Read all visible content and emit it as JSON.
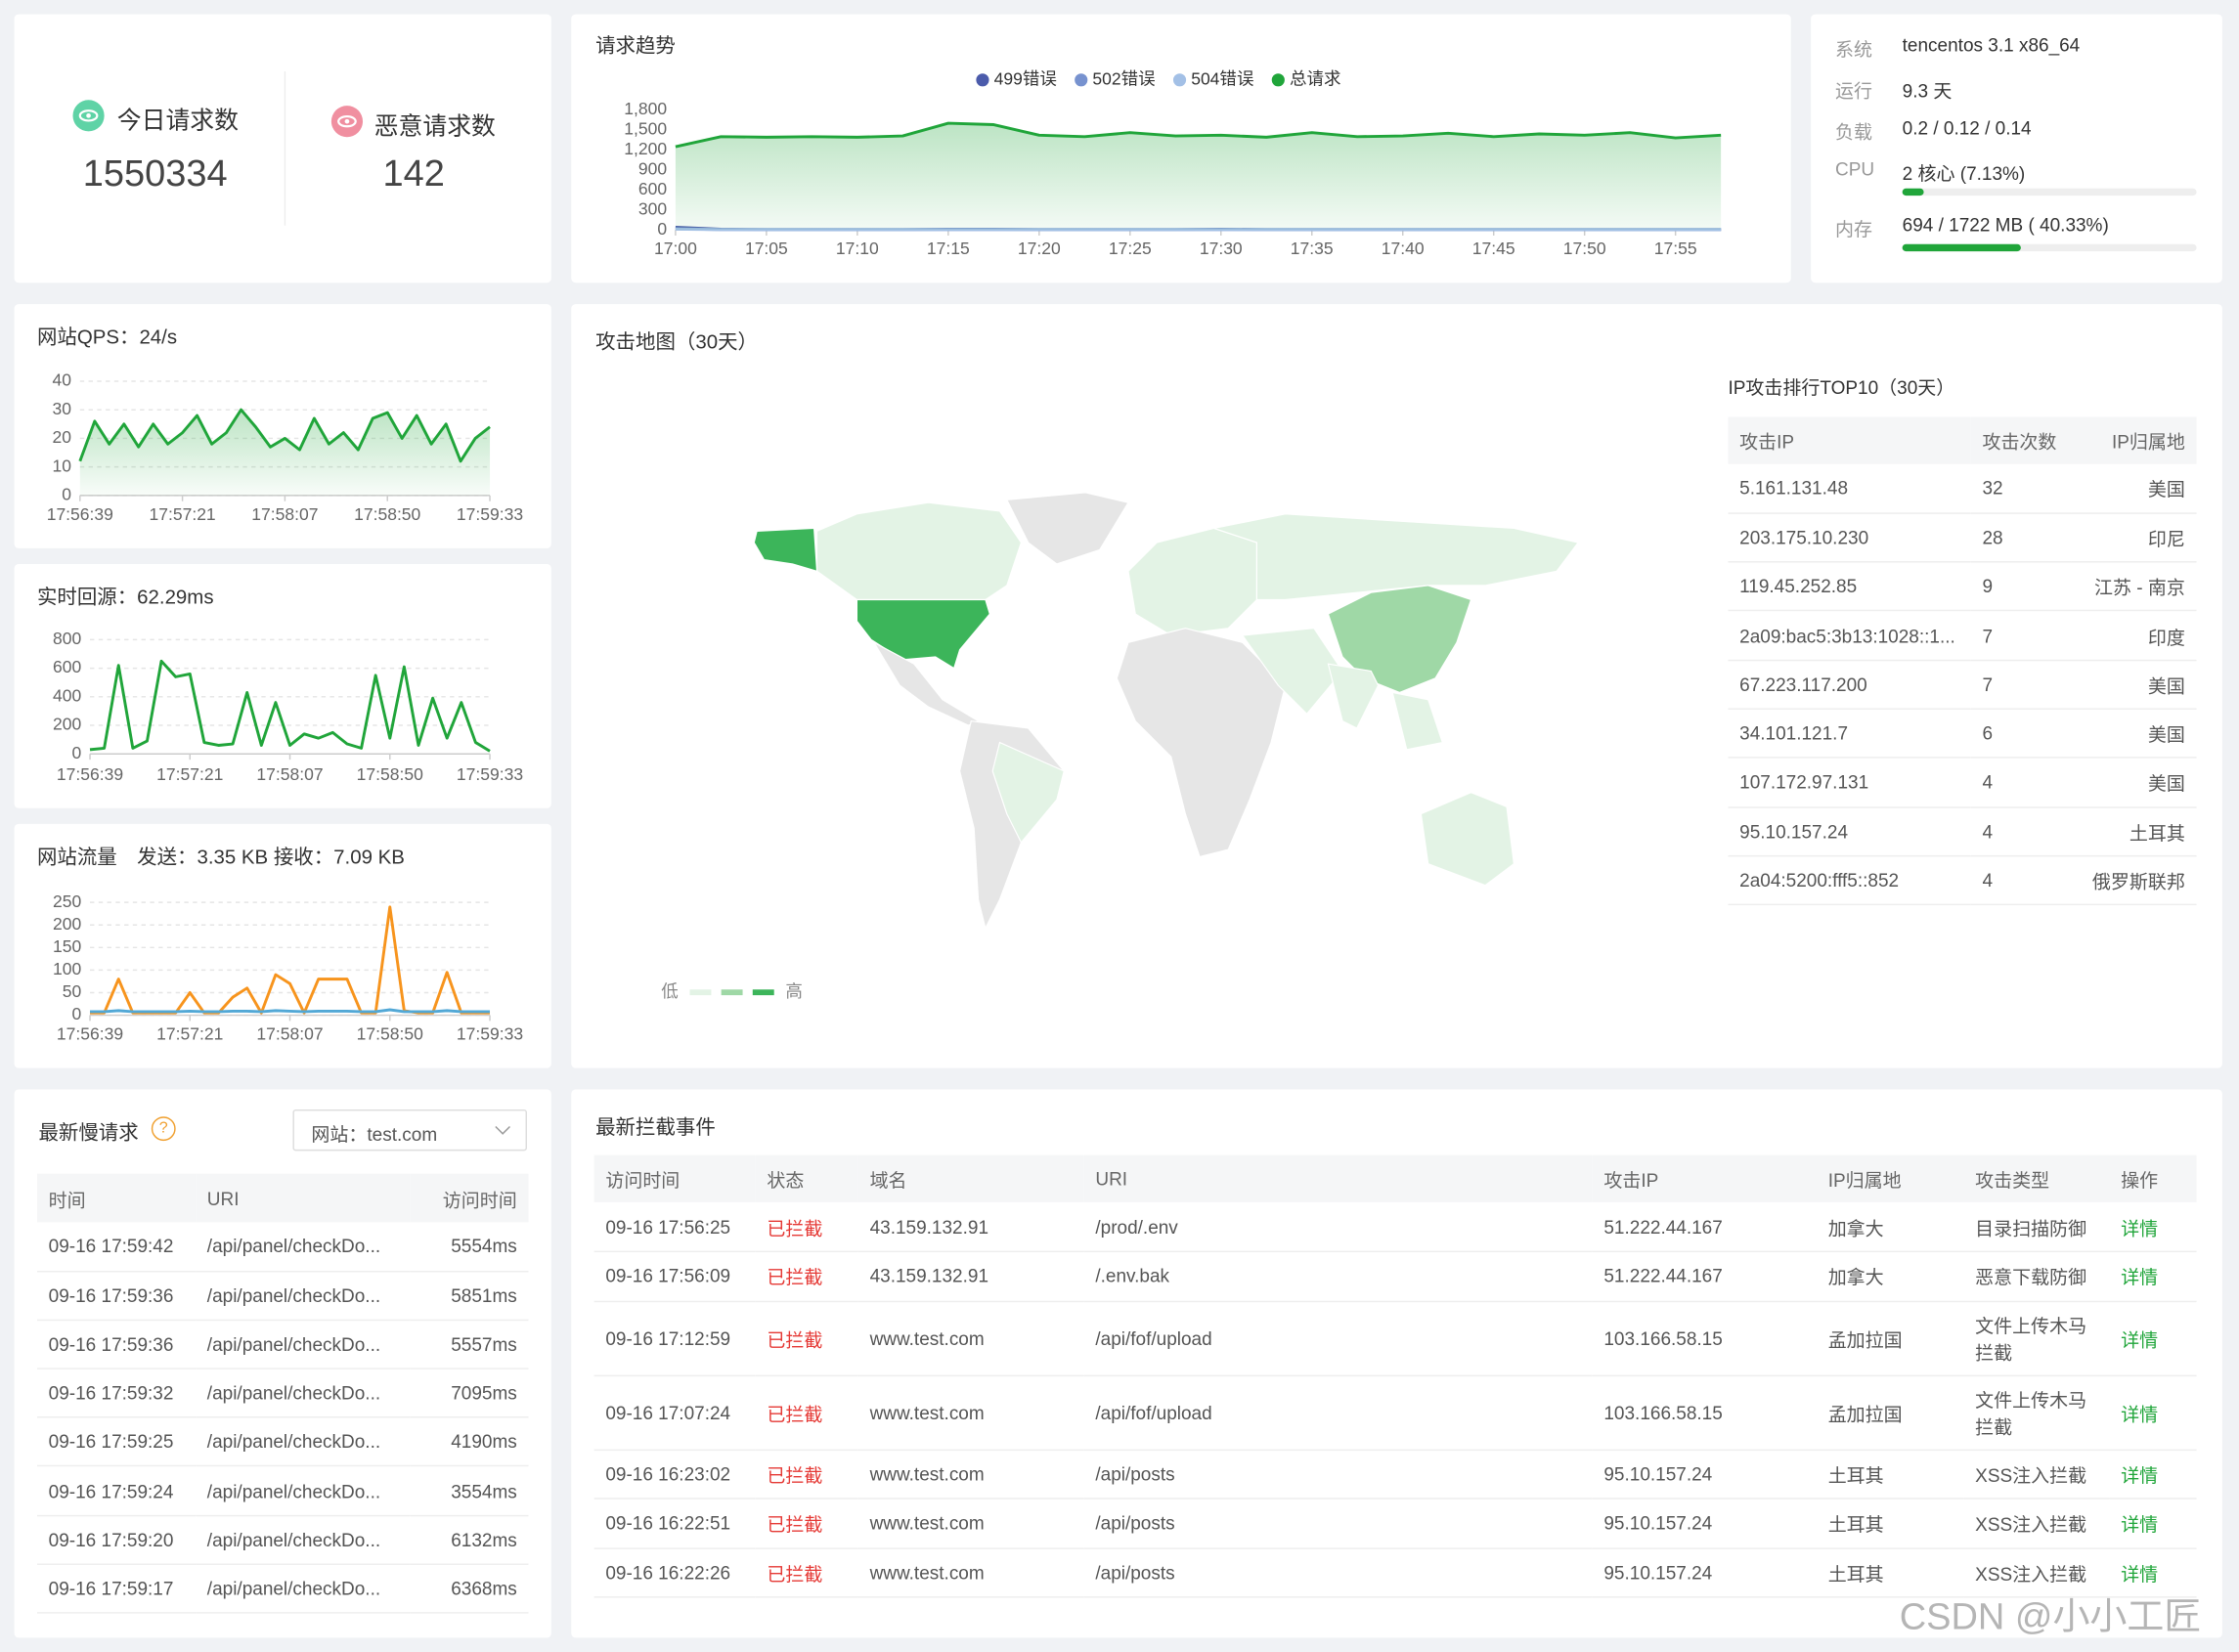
{
  "stats": {
    "today_label": "今日请求数",
    "today_value": 1550334,
    "malicious_label": "恶意请求数",
    "malicious_value": 142
  },
  "chart_data": [
    {
      "type": "line",
      "title": "请求趋势",
      "categories": [
        "17:00",
        null,
        "17:05",
        null,
        "17:10",
        null,
        "17:15",
        null,
        "17:20",
        null,
        "17:25",
        null,
        "17:30",
        null,
        "17:35",
        null,
        "17:40",
        null,
        "17:45",
        null,
        "17:50",
        null,
        "17:55",
        null
      ],
      "series": [
        {
          "name": "499错误",
          "color": "#4b5bab",
          "values": [
            40,
            10,
            5,
            5,
            5,
            5,
            10,
            10,
            5,
            5,
            5,
            5,
            10,
            5,
            5,
            5,
            5,
            5,
            5,
            5,
            5,
            5,
            5,
            5
          ]
        },
        {
          "name": "502错误",
          "color": "#7792cf",
          "values": [
            20,
            5,
            5,
            5,
            5,
            5,
            5,
            5,
            5,
            5,
            5,
            5,
            5,
            5,
            5,
            5,
            5,
            5,
            5,
            5,
            5,
            5,
            5,
            5
          ]
        },
        {
          "name": "504错误",
          "color": "#a3c0e6",
          "values": [
            10,
            5,
            5,
            5,
            5,
            5,
            5,
            5,
            5,
            5,
            5,
            5,
            5,
            5,
            5,
            5,
            5,
            5,
            5,
            5,
            5,
            5,
            5,
            5
          ]
        },
        {
          "name": "总请求",
          "color": "#20a53a",
          "values": [
            1250,
            1400,
            1390,
            1400,
            1390,
            1410,
            1600,
            1580,
            1420,
            1400,
            1460,
            1410,
            1420,
            1390,
            1460,
            1400,
            1410,
            1450,
            1400,
            1440,
            1420,
            1460,
            1380,
            1420
          ]
        }
      ],
      "ylim": [
        0,
        1800
      ],
      "yticks": [
        0,
        300,
        600,
        900,
        {
          "value": 1200,
          "label": "1,200"
        },
        {
          "value": 1500,
          "label": "1,500"
        },
        {
          "value": 1800,
          "label": "1,800"
        }
      ],
      "grid": false,
      "legend": "top",
      "area": true
    },
    {
      "type": "line",
      "title": "网站QPS：24/s",
      "categories": [
        "17:56:39",
        null,
        null,
        null,
        null,
        null,
        null,
        "17:57:21",
        null,
        null,
        null,
        null,
        null,
        null,
        "17:58:07",
        null,
        null,
        null,
        null,
        null,
        null,
        "17:58:50",
        null,
        null,
        null,
        null,
        null,
        null,
        "17:59:33"
      ],
      "series": [
        {
          "color": "#20a53a",
          "values": [
            12,
            26,
            18,
            25,
            17,
            25,
            18,
            22,
            28,
            18,
            22,
            30,
            24,
            17,
            20,
            16,
            27,
            18,
            22,
            16,
            27,
            29,
            20,
            28,
            18,
            25,
            12,
            20,
            24
          ]
        }
      ],
      "ylim": [
        0,
        40
      ],
      "yticks": [
        0,
        10,
        20,
        30,
        40
      ],
      "grid": true,
      "area": true
    },
    {
      "type": "line",
      "title": "实时回源：62.29ms",
      "categories": [
        "17:56:39",
        null,
        null,
        null,
        null,
        null,
        null,
        "17:57:21",
        null,
        null,
        null,
        null,
        null,
        null,
        "17:58:07",
        null,
        null,
        null,
        null,
        null,
        null,
        "17:58:50",
        null,
        null,
        null,
        null,
        null,
        null,
        "17:59:33"
      ],
      "series": [
        {
          "color": "#20a53a",
          "values": [
            30,
            40,
            620,
            40,
            90,
            650,
            540,
            560,
            80,
            60,
            70,
            430,
            60,
            360,
            60,
            140,
            110,
            150,
            70,
            40,
            550,
            110,
            610,
            60,
            390,
            110,
            360,
            80,
            20
          ]
        }
      ],
      "ylim": [
        0,
        800
      ],
      "yticks": [
        0,
        200,
        400,
        600,
        800
      ],
      "grid": true,
      "area": false
    },
    {
      "type": "line",
      "title": "网站流量　发送：3.35 KB  接收：7.09 KB",
      "categories": [
        "17:56:39",
        null,
        null,
        null,
        null,
        null,
        null,
        "17:57:21",
        null,
        null,
        null,
        null,
        null,
        null,
        "17:58:07",
        null,
        null,
        null,
        null,
        null,
        null,
        "17:58:50",
        null,
        null,
        null,
        null,
        null,
        null,
        "17:59:33"
      ],
      "series": [
        {
          "color": "#f7941d",
          "values": [
            5,
            5,
            80,
            5,
            5,
            5,
            5,
            50,
            5,
            5,
            40,
            60,
            5,
            90,
            70,
            5,
            80,
            80,
            80,
            5,
            5,
            240,
            10,
            5,
            5,
            95,
            5,
            5,
            5
          ]
        },
        {
          "color": "#52a8d6",
          "values": [
            8,
            8,
            10,
            8,
            8,
            8,
            8,
            9,
            8,
            8,
            9,
            9,
            8,
            10,
            9,
            8,
            9,
            9,
            9,
            8,
            8,
            12,
            8,
            8,
            8,
            10,
            8,
            8,
            8
          ]
        }
      ],
      "ylim": [
        0,
        250
      ],
      "yticks": [
        0,
        50,
        100,
        150,
        200,
        250
      ],
      "grid": true,
      "area": false
    }
  ],
  "system": {
    "rows": [
      {
        "label": "系统",
        "value": "tencentos 3.1 x86_64"
      },
      {
        "label": "运行",
        "value": "9.3 天"
      },
      {
        "label": "负载",
        "value": "0.2 / 0.12 / 0.14"
      },
      {
        "label": "CPU",
        "value": "2 核心 (7.13%)",
        "percent": 7.13
      },
      {
        "label": "内存",
        "value": "694 / 1722 MB ( 40.33%)",
        "percent": 40.33
      }
    ],
    "bar_color": "#20a53a"
  },
  "map": {
    "title": "攻击地图（30天）",
    "legend_low": "低",
    "legend_high": "高"
  },
  "ip_top": {
    "title": "IP攻击排行TOP10（30天）",
    "headers": [
      "攻击IP",
      "攻击次数",
      "IP归属地"
    ],
    "rows": [
      [
        "5.161.131.48",
        32,
        "美国"
      ],
      [
        "203.175.10.230",
        28,
        "印尼"
      ],
      [
        "119.45.252.85",
        9,
        "江苏 - 南京"
      ],
      [
        "2a09:bac5:3b13:1028::1...",
        7,
        "印度"
      ],
      [
        "67.223.117.200",
        7,
        "美国"
      ],
      [
        "34.101.121.7",
        6,
        "美国"
      ],
      [
        "107.172.97.131",
        4,
        "美国"
      ],
      [
        "95.10.157.24",
        4,
        "土耳其"
      ],
      [
        "2a04:5200:fff5::852",
        4,
        "俄罗斯联邦"
      ]
    ]
  },
  "slow": {
    "title": "最新慢请求",
    "help": "?",
    "site_select": "网站：test.com",
    "headers": [
      "时间",
      "URI",
      "访问时间"
    ],
    "rows": [
      [
        "09-16 17:59:42",
        "/api/panel/checkDo...",
        "5554ms"
      ],
      [
        "09-16 17:59:36",
        "/api/panel/checkDo...",
        "5851ms"
      ],
      [
        "09-16 17:59:36",
        "/api/panel/checkDo...",
        "5557ms"
      ],
      [
        "09-16 17:59:32",
        "/api/panel/checkDo...",
        "7095ms"
      ],
      [
        "09-16 17:59:25",
        "/api/panel/checkDo...",
        "4190ms"
      ],
      [
        "09-16 17:59:24",
        "/api/panel/checkDo...",
        "3554ms"
      ],
      [
        "09-16 17:59:20",
        "/api/panel/checkDo...",
        "6132ms"
      ],
      [
        "09-16 17:59:17",
        "/api/panel/checkDo...",
        "6368ms"
      ]
    ]
  },
  "events": {
    "title": "最新拦截事件",
    "headers": [
      "访问时间",
      "状态",
      "域名",
      "URI",
      "攻击IP",
      "IP归属地",
      "攻击类型",
      "操作"
    ],
    "rows": [
      [
        "09-16 17:56:25",
        "已拦截",
        "43.159.132.91",
        "/prod/.env",
        "51.222.44.167",
        "加拿大",
        "目录扫描防御",
        "详情"
      ],
      [
        "09-16 17:56:09",
        "已拦截",
        "43.159.132.91",
        "/.env.bak",
        "51.222.44.167",
        "加拿大",
        "恶意下载防御",
        "详情"
      ],
      [
        "09-16 17:12:59",
        "已拦截",
        "www.test.com",
        "/api/fof/upload",
        "103.166.58.15",
        "孟加拉国",
        "文件上传木马拦截",
        "详情"
      ],
      [
        "09-16 17:07:24",
        "已拦截",
        "www.test.com",
        "/api/fof/upload",
        "103.166.58.15",
        "孟加拉国",
        "文件上传木马拦截",
        "详情"
      ],
      [
        "09-16 16:23:02",
        "已拦截",
        "www.test.com",
        "/api/posts",
        "95.10.157.24",
        "土耳其",
        "XSS注入拦截",
        "详情"
      ],
      [
        "09-16 16:22:51",
        "已拦截",
        "www.test.com",
        "/api/posts",
        "95.10.157.24",
        "土耳其",
        "XSS注入拦截",
        "详情"
      ],
      [
        "09-16 16:22:26",
        "已拦截",
        "www.test.com",
        "/api/posts",
        "95.10.157.24",
        "土耳其",
        "XSS注入拦截",
        "详情"
      ]
    ]
  },
  "watermark": "CSDN @小小工匠"
}
